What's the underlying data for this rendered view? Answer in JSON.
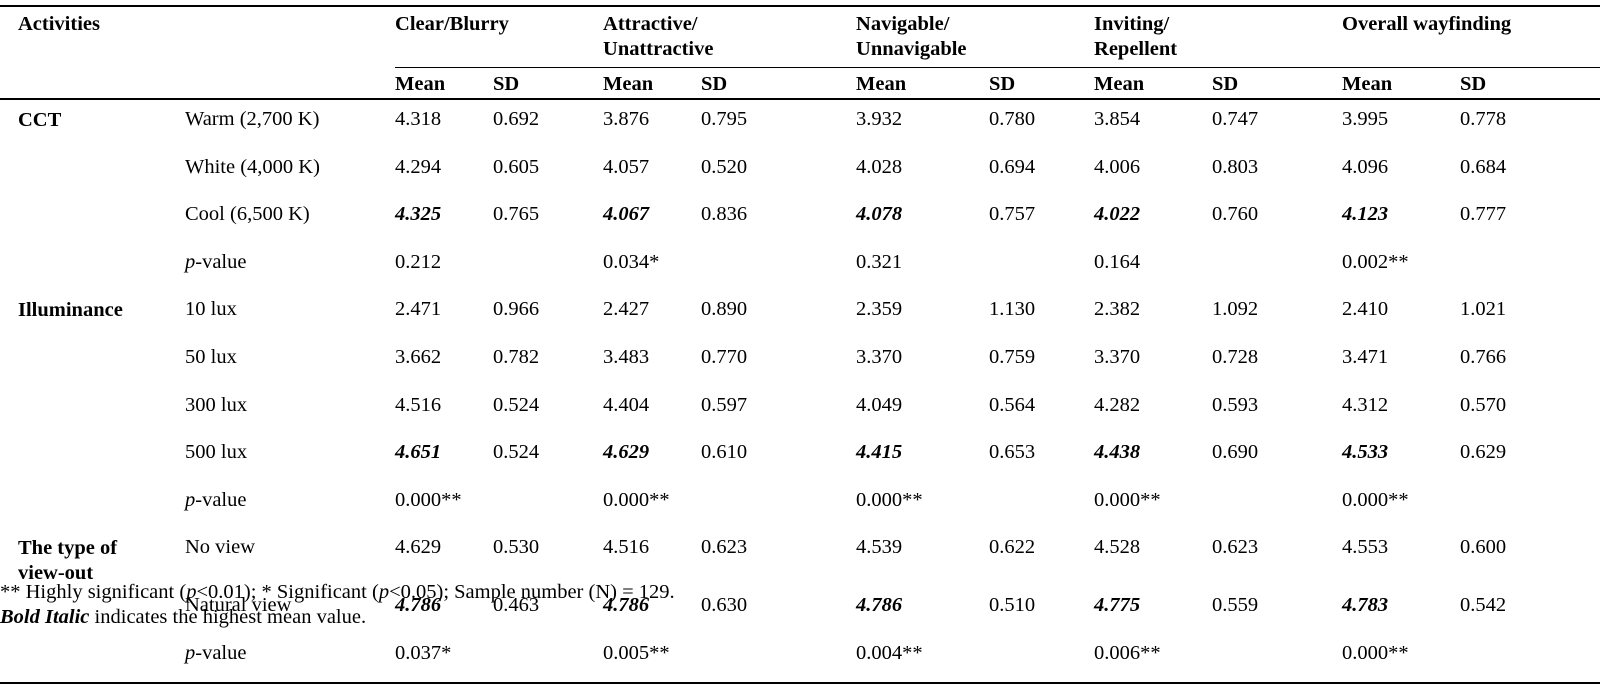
{
  "header": {
    "activities": "Activities",
    "groups": [
      "Clear/Blurry",
      "Attractive/\nUnattractive",
      "Navigable/\nUnnavigable",
      "Inviting/\nRepellent",
      "Overall wayfinding"
    ],
    "mean": "Mean",
    "sd": "SD"
  },
  "sections": [
    {
      "name": "CCT",
      "rows": [
        {
          "label": "Warm (2,700 K)",
          "cells": [
            "4.318",
            "0.692",
            "3.876",
            "0.795",
            "3.932",
            "0.780",
            "3.854",
            "0.747",
            "3.995",
            "0.778"
          ]
        },
        {
          "label": "White (4,000 K)",
          "cells": [
            "4.294",
            "0.605",
            "4.057",
            "0.520",
            "4.028",
            "0.694",
            "4.006",
            "0.803",
            "4.096",
            "0.684"
          ]
        },
        {
          "label": "Cool (6,500 K)",
          "cells": [
            "4.325",
            "0.765",
            "4.067",
            "0.836",
            "4.078",
            "0.757",
            "4.022",
            "0.760",
            "4.123",
            "0.777"
          ],
          "bold_means": true
        },
        {
          "label_prefix": "p",
          "label": "-value",
          "cells": [
            "0.212",
            "",
            "0.034*",
            "",
            "0.321",
            "",
            "0.164",
            "",
            "0.002**",
            ""
          ]
        }
      ]
    },
    {
      "name": "Illuminance",
      "rows": [
        {
          "label": "10 lux",
          "cells": [
            "2.471",
            "0.966",
            "2.427",
            "0.890",
            "2.359",
            "1.130",
            "2.382",
            "1.092",
            "2.410",
            "1.021"
          ]
        },
        {
          "label": "50 lux",
          "cells": [
            "3.662",
            "0.782",
            "3.483",
            "0.770",
            "3.370",
            "0.759",
            "3.370",
            "0.728",
            "3.471",
            "0.766"
          ]
        },
        {
          "label": "300 lux",
          "cells": [
            "4.516",
            "0.524",
            "4.404",
            "0.597",
            "4.049",
            "0.564",
            "4.282",
            "0.593",
            "4.312",
            "0.570"
          ]
        },
        {
          "label": "500 lux",
          "cells": [
            "4.651",
            "0.524",
            "4.629",
            "0.610",
            "4.415",
            "0.653",
            "4.438",
            "0.690",
            "4.533",
            "0.629"
          ],
          "bold_means": true
        },
        {
          "label_prefix": "p",
          "label": "-value",
          "cells": [
            "0.000**",
            "",
            "0.000**",
            "",
            "0.000**",
            "",
            "0.000**",
            "",
            "0.000**",
            ""
          ]
        }
      ]
    },
    {
      "name": "The type of\nview-out",
      "rows": [
        {
          "label": "No view",
          "cells": [
            "4.629",
            "0.530",
            "4.516",
            "0.623",
            "4.539",
            "0.622",
            "4.528",
            "0.623",
            "4.553",
            "0.600"
          ]
        },
        {
          "label": "Natural view",
          "cells": [
            "4.786",
            "0.463",
            "4.786",
            "0.630",
            "4.786",
            "0.510",
            "4.775",
            "0.559",
            "4.783",
            "0.542"
          ],
          "bold_means": true
        },
        {
          "label_prefix": "p",
          "label": "-value",
          "cells": [
            "0.037*",
            "",
            "0.005**",
            "",
            "0.004**",
            "",
            "0.006**",
            "",
            "0.000**",
            ""
          ]
        }
      ]
    }
  ],
  "notes": {
    "line1_a": "** Highly significant (",
    "line1_p1": "p",
    "line1_b": "<0.01); * Significant (",
    "line1_p2": "p",
    "line1_c": "<0.05); Sample number (N) = 129.",
    "line2_bi": "Bold Italic",
    "line2_rest": " indicates the highest mean value."
  }
}
